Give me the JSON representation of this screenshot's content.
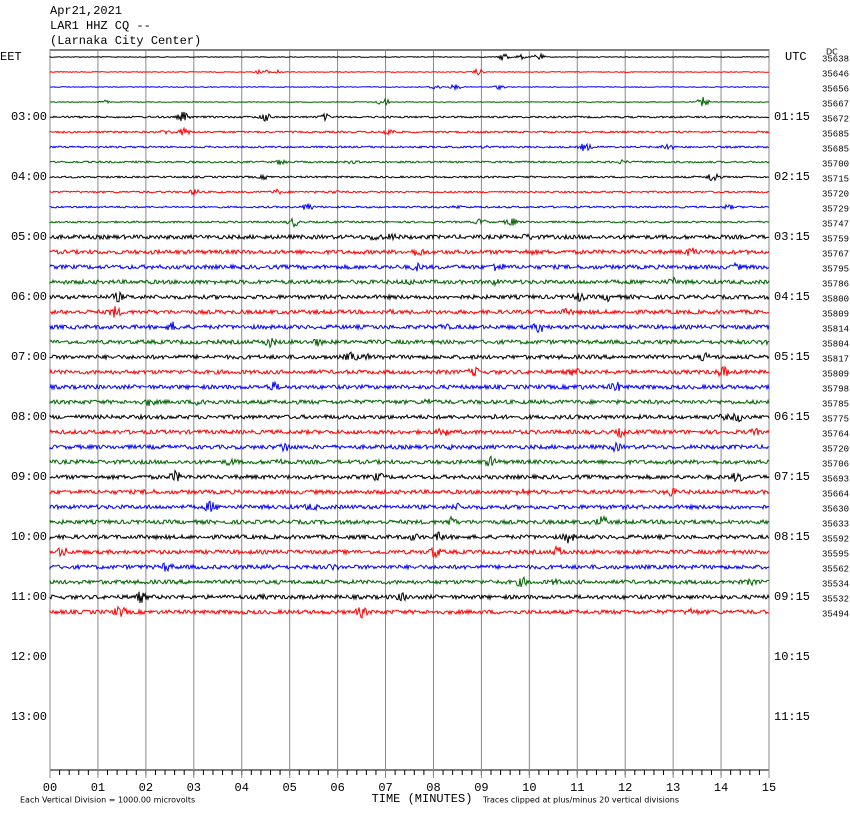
{
  "header": {
    "date": "Apr21,2021",
    "station": "LAR1 HHZ CQ --",
    "location": "(Larnaka City Center)"
  },
  "chart_data": {
    "type": "helicorder",
    "left_zone": "EET",
    "right_zone": "UTC",
    "dc_label": "DC",
    "x_label": "TIME (MINUTES)",
    "scale_note": "Each Vertical Division = 1000.00 microvolts",
    "clip_note": "Traces clipped at plus/minus 20 vertical divisions",
    "xlim": [
      0,
      15
    ],
    "xticks": [
      {
        "value": 0,
        "label": "00"
      },
      {
        "value": 1,
        "label": "01"
      },
      {
        "value": 2,
        "label": "02"
      },
      {
        "value": 3,
        "label": "03"
      },
      {
        "value": 4,
        "label": "04"
      },
      {
        "value": 5,
        "label": "05"
      },
      {
        "value": 6,
        "label": "06"
      },
      {
        "value": 7,
        "label": "07"
      },
      {
        "value": 8,
        "label": "08"
      },
      {
        "value": 9,
        "label": "09"
      },
      10,
      11,
      12,
      13,
      14,
      15
    ],
    "trace_colors": [
      "#000000",
      "#ff0000",
      "#0000ff",
      "#006400"
    ],
    "traces": [
      35638,
      35646,
      35656,
      35667,
      35672,
      35685,
      35685,
      35700,
      35715,
      35720,
      35729,
      35747,
      35759,
      35767,
      35795,
      35786,
      35800,
      35809,
      35814,
      35804,
      35817,
      35809,
      35798,
      35785,
      35775,
      35764,
      35720,
      35706,
      35693,
      35664,
      35630,
      35633,
      35592,
      35595,
      35562,
      35534,
      35532,
      35494
    ],
    "left_times": [
      "03:00",
      "04:00",
      "05:00",
      "06:00",
      "07:00",
      "08:00",
      "09:00",
      "10:00",
      "11:00",
      "12:00",
      "13:00"
    ],
    "right_times": [
      "01:15",
      "02:15",
      "03:15",
      "04:15",
      "05:15",
      "06:15",
      "07:15",
      "08:15",
      "09:15",
      "10:15",
      "11:15"
    ]
  }
}
